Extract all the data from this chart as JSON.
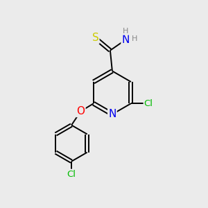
{
  "background_color": "#ebebeb",
  "bond_color": "#000000",
  "atom_colors": {
    "N": "#0000ee",
    "O": "#ff0000",
    "S": "#cccc00",
    "Cl": "#00bb00",
    "H": "#888888"
  },
  "lw": 1.4,
  "doff": 0.085,
  "fs": 10
}
